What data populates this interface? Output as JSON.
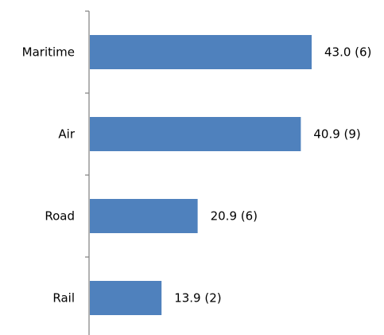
{
  "chart_data": {
    "type": "bar",
    "orientation": "horizontal",
    "categories": [
      "Maritime",
      "Air",
      "Road",
      "Rail"
    ],
    "values": [
      43.0,
      40.9,
      20.9,
      13.9
    ],
    "data_labels": [
      "43.0 (6)",
      "40.9 (9)",
      "20.9 (6)",
      "13.9 (2)"
    ],
    "xlim": [
      0,
      50
    ],
    "grid": false,
    "legend": "none",
    "bar_color": "#4f81bd",
    "axis_color": "#888888"
  }
}
